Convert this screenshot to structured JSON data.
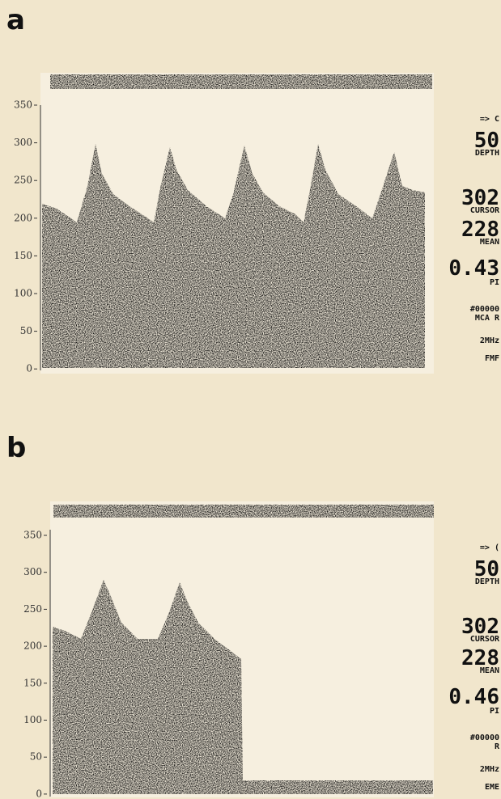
{
  "panels": [
    {
      "label": "a",
      "ticks": [
        "350",
        "300",
        "250",
        "200",
        "150",
        "100",
        "50",
        "0"
      ],
      "readout": {
        "arrow": "=> C",
        "depth": "50",
        "depth_label": "DEPTH",
        "cursor": "302",
        "cursor_label": "CURSOR",
        "mean": "228",
        "mean_label": "MEAN",
        "pi": "0.43",
        "pi_label": "PI",
        "id": "#00000",
        "vessel": "MCA R",
        "freq": "2MHz",
        "mode": "FMF"
      }
    },
    {
      "label": "b",
      "ticks": [
        "350",
        "300",
        "250",
        "200",
        "150",
        "100",
        "50",
        "0"
      ],
      "readout": {
        "arrow": "=> (",
        "depth": "50",
        "depth_label": "DEPTH",
        "cursor": "302",
        "cursor_label": "CURSOR",
        "mean": "228",
        "mean_label": "MEAN",
        "pi": "0.46",
        "pi_label": "PI",
        "id": "#00000",
        "vessel": "R",
        "freq": "2MHz",
        "mode": "EME"
      }
    }
  ]
}
